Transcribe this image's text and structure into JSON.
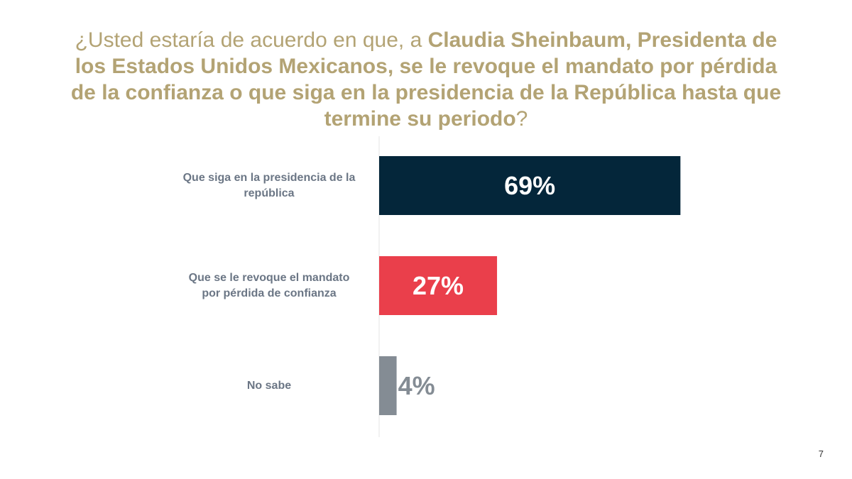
{
  "title": {
    "part1": "¿Usted estaría de acuerdo en que, a ",
    "part2": "Claudia Sheinbaum, Presidenta de los Estados Unidos Mexicanos, se le revoque el mandato por pérdida de la confianza o que siga en la presidencia de la República hasta que termine su periodo",
    "part3": "?"
  },
  "page_number": "7",
  "chart_data": {
    "type": "bar",
    "orientation": "horizontal",
    "categories": [
      [
        "Que siga en la presidencia de la",
        "república"
      ],
      [
        "Que se le revoque el mandato",
        "por pérdida de confianza"
      ],
      [
        "No sabe"
      ]
    ],
    "values": [
      69,
      27,
      4
    ],
    "value_labels": [
      "69%",
      "27%",
      "4%"
    ],
    "colors": [
      "#04263a",
      "#ea3f4b",
      "#848c94"
    ],
    "label_colors": [
      "#ffffff",
      "#ffffff",
      "#848c94"
    ],
    "xlim": [
      0,
      100
    ],
    "grid": false,
    "legend": "none"
  }
}
